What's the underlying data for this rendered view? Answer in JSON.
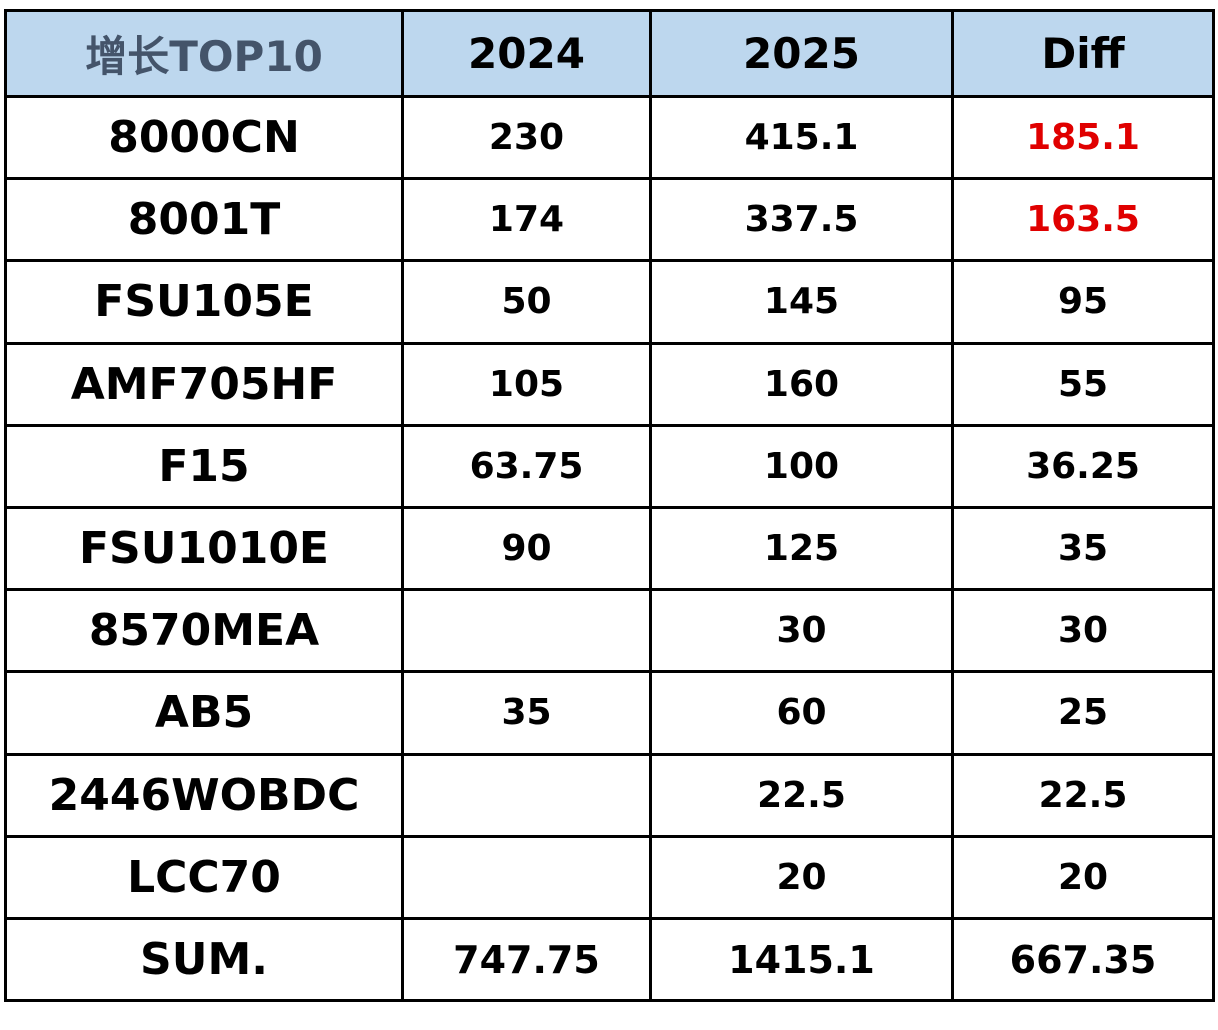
{
  "colors": {
    "header_background": "#bdd7ee",
    "header_first_text": "#44546a",
    "highlight_red": "#e00000",
    "text": "#000000"
  },
  "chart_data": {
    "type": "table",
    "title": "",
    "columns": [
      "增长TOP10",
      "2024",
      "2025",
      "Diff"
    ],
    "rows": [
      {
        "name": "8000CN",
        "y2024": "230",
        "y2025": "415.1",
        "diff": "185.1",
        "highlight": true
      },
      {
        "name": "8001T",
        "y2024": "174",
        "y2025": "337.5",
        "diff": "163.5",
        "highlight": true
      },
      {
        "name": "FSU105E",
        "y2024": "50",
        "y2025": "145",
        "diff": "95",
        "highlight": false
      },
      {
        "name": "AMF705HF",
        "y2024": "105",
        "y2025": "160",
        "diff": "55",
        "highlight": false
      },
      {
        "name": "F15",
        "y2024": "63.75",
        "y2025": "100",
        "diff": "36.25",
        "highlight": false
      },
      {
        "name": "FSU1010E",
        "y2024": "90",
        "y2025": "125",
        "diff": "35",
        "highlight": false
      },
      {
        "name": "8570MEA",
        "y2024": "",
        "y2025": "30",
        "diff": "30",
        "highlight": false
      },
      {
        "name": "AB5",
        "y2024": "35",
        "y2025": "60",
        "diff": "25",
        "highlight": false
      },
      {
        "name": "2446WOBDC",
        "y2024": "",
        "y2025": "22.5",
        "diff": "22.5",
        "highlight": false
      },
      {
        "name": "LCC70",
        "y2024": "",
        "y2025": "20",
        "diff": "20",
        "highlight": false
      }
    ],
    "sum": {
      "label": "SUM.",
      "y2024": "747.75",
      "y2025": "1415.1",
      "diff": "667.35"
    }
  }
}
